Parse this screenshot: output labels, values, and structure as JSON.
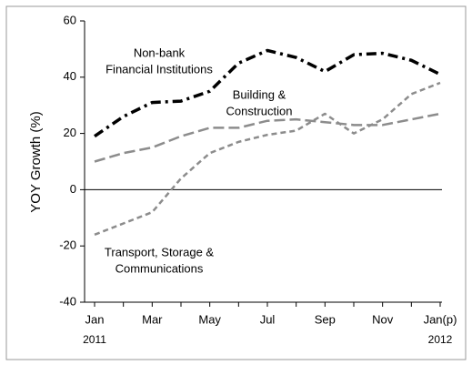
{
  "chart_data": {
    "type": "line",
    "ylabel": "YOY Growth (%)",
    "categories": [
      "Jan",
      null,
      "Mar",
      null,
      "May",
      null,
      "Jul",
      null,
      "Sep",
      null,
      "Nov",
      null,
      "Jan(p)"
    ],
    "category_years": [
      "2011",
      null,
      null,
      null,
      null,
      null,
      null,
      null,
      null,
      null,
      null,
      null,
      "2012"
    ],
    "ylim": [
      -40,
      60
    ],
    "yticks": [
      -40,
      -20,
      0,
      20,
      40,
      60
    ],
    "series": [
      {
        "label_lines": [
          "Non-bank",
          "Financial Institutions"
        ],
        "color": "#000000",
        "dash": "dashdot",
        "values": [
          19,
          26,
          31,
          31.5,
          35,
          45,
          49.5,
          47,
          42,
          48,
          48.5,
          46,
          41
        ]
      },
      {
        "label_lines": [
          "Building &",
          "Construction"
        ],
        "color": "#8c8c8c",
        "dash": "dash",
        "values": [
          10,
          13,
          15,
          19,
          22,
          22,
          24.5,
          25,
          24,
          23,
          23,
          25,
          27
        ]
      },
      {
        "label_lines": [
          "Transport, Storage &",
          "Communications"
        ],
        "color": "#8c8c8c",
        "dash": "shortdash",
        "values": [
          -16,
          -12,
          -8,
          4,
          13,
          17,
          19.5,
          21,
          27,
          20,
          25,
          34,
          38
        ]
      }
    ]
  }
}
